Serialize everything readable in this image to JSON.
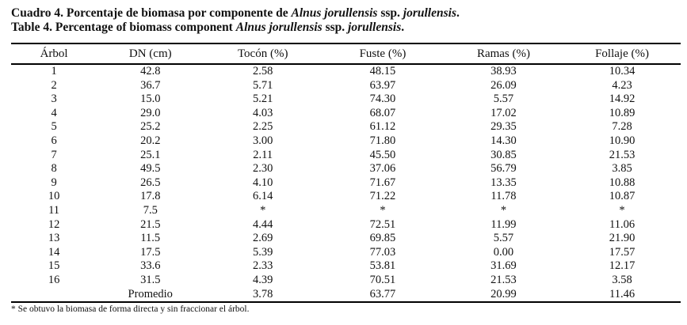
{
  "caption": {
    "es": {
      "text1": "Cuadro 4. Porcentaje de biomasa por componente de ",
      "italic1": "Alnus jorullensis",
      "text2": " ssp. ",
      "italic2": "jorullensis",
      "text3": "."
    },
    "en": {
      "text1": "Table 4. Percentage of biomass component ",
      "italic1": "Alnus jorullensis",
      "text2": " ssp. ",
      "italic2": "jorullensis",
      "text3": "."
    }
  },
  "table": {
    "headers": [
      "Árbol",
      "DN (cm)",
      "Tocón (%)",
      "Fuste (%)",
      "Ramas (%)",
      "Follaje (%)"
    ],
    "rows": [
      [
        "1",
        "42.8",
        "2.58",
        "48.15",
        "38.93",
        "10.34"
      ],
      [
        "2",
        "36.7",
        "5.71",
        "63.97",
        "26.09",
        "4.23"
      ],
      [
        "3",
        "15.0",
        "5.21",
        "74.30",
        "5.57",
        "14.92"
      ],
      [
        "4",
        "29.0",
        "4.03",
        "68.07",
        "17.02",
        "10.89"
      ],
      [
        "5",
        "25.2",
        "2.25",
        "61.12",
        "29.35",
        "7.28"
      ],
      [
        "6",
        "20.2",
        "3.00",
        "71.80",
        "14.30",
        "10.90"
      ],
      [
        "7",
        "25.1",
        "2.11",
        "45.50",
        "30.85",
        "21.53"
      ],
      [
        "8",
        "49.5",
        "2.30",
        "37.06",
        "56.79",
        "3.85"
      ],
      [
        "9",
        "26.5",
        "4.10",
        "71.67",
        "13.35",
        "10.88"
      ],
      [
        "10",
        "17.8",
        "6.14",
        "71.22",
        "11.78",
        "10.87"
      ],
      [
        "11",
        "7.5",
        "*",
        "*",
        "*",
        "*"
      ],
      [
        "12",
        "21.5",
        "4.44",
        "72.51",
        "11.99",
        "11.06"
      ],
      [
        "13",
        "11.5",
        "2.69",
        "69.85",
        "5.57",
        "21.90"
      ],
      [
        "14",
        "17.5",
        "5.39",
        "77.03",
        "0.00",
        "17.57"
      ],
      [
        "15",
        "33.6",
        "2.33",
        "53.81",
        "31.69",
        "12.17"
      ],
      [
        "16",
        "31.5",
        "4.39",
        "70.51",
        "21.53",
        "3.58"
      ],
      [
        "",
        "Promedio",
        "3.78",
        "63.77",
        "20.99",
        "11.46"
      ]
    ]
  },
  "footnote": "* Se obtuvo la biomasa de forma directa y sin fraccionar el árbol."
}
